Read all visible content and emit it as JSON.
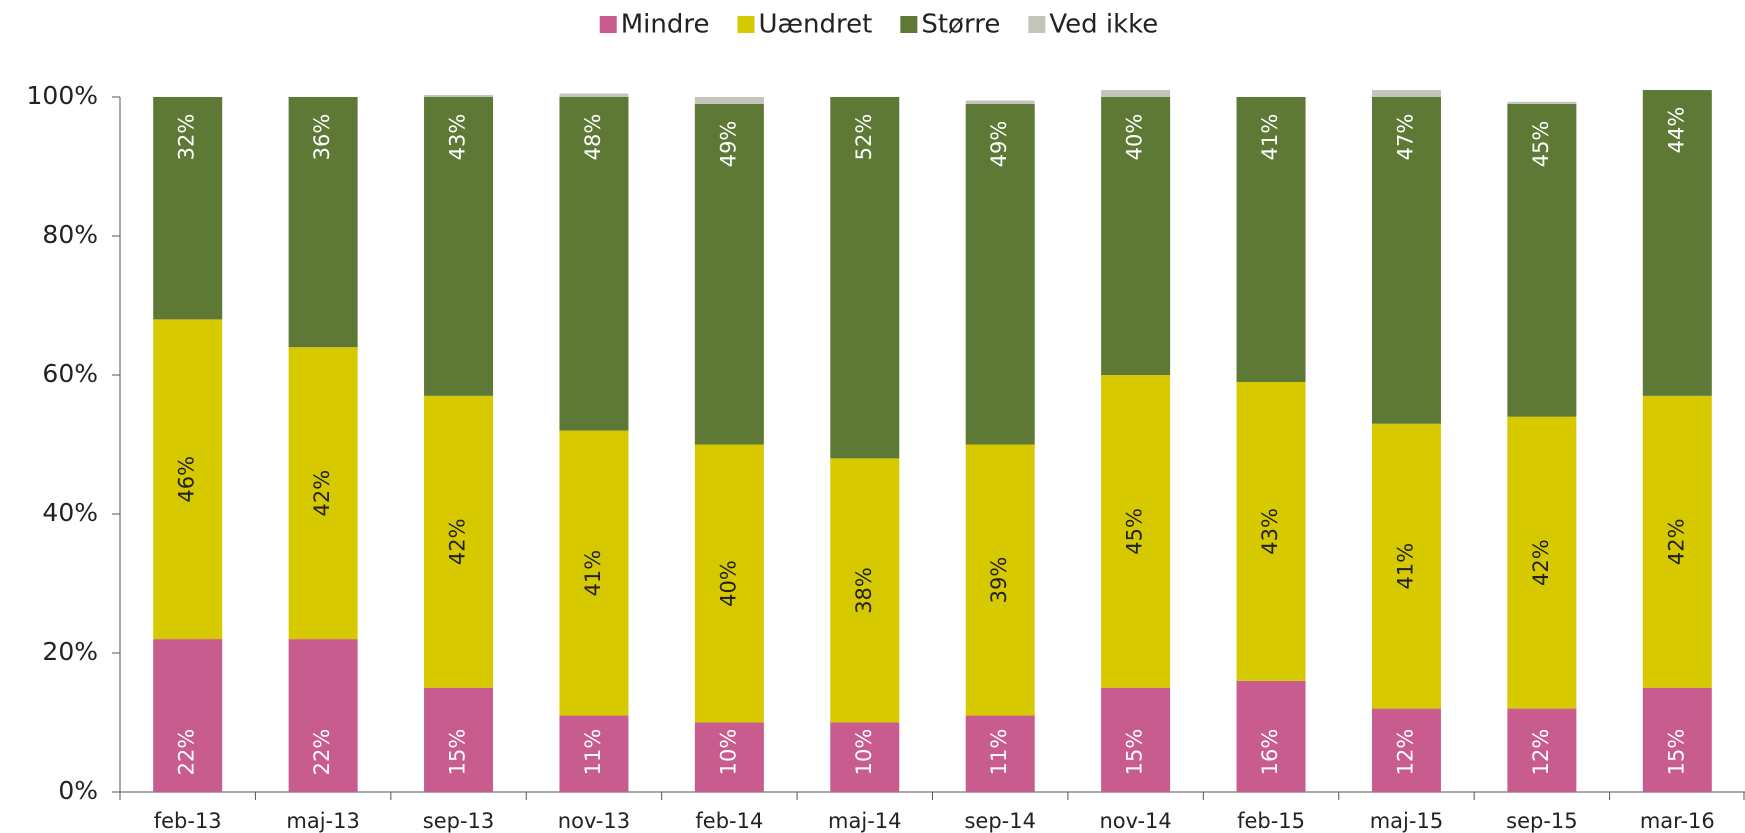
{
  "chart_data": {
    "type": "stacked_bar",
    "categories": [
      "feb-13",
      "maj-13",
      "sep-13",
      "nov-13",
      "feb-14",
      "maj-14",
      "sep-14",
      "nov-14",
      "feb-15",
      "maj-15",
      "sep-15",
      "mar-16"
    ],
    "series": [
      {
        "name": "Mindre",
        "color": "#c95c8f",
        "values": [
          22,
          22,
          15,
          11,
          10,
          10,
          11,
          15,
          16,
          12,
          12,
          15
        ],
        "value_labels": [
          "22%",
          "22%",
          "15%",
          "11%",
          "10%",
          "10%",
          "11%",
          "15%",
          "16%",
          "12%",
          "12%",
          "15%"
        ]
      },
      {
        "name": "Uændret",
        "color": "#d7c900",
        "values": [
          46,
          42,
          42,
          41,
          40,
          38,
          39,
          45,
          43,
          41,
          42,
          42
        ],
        "value_labels": [
          "46%",
          "42%",
          "42%",
          "41%",
          "40%",
          "38%",
          "39%",
          "45%",
          "43%",
          "41%",
          "42%",
          "42%"
        ]
      },
      {
        "name": "Større",
        "color": "#5d7935",
        "values": [
          32,
          36,
          43,
          48,
          49,
          52,
          49,
          40,
          41,
          47,
          45,
          44
        ],
        "value_labels": [
          "32%",
          "36%",
          "43%",
          "48%",
          "49%",
          "52%",
          "49%",
          "40%",
          "41%",
          "47%",
          "45%",
          "44%"
        ]
      },
      {
        "name": "Ved ikke",
        "color": "#c4c4bc",
        "values": [
          0,
          0,
          0.3,
          0.5,
          1,
          0,
          0.5,
          1,
          0,
          1,
          0.3,
          0
        ]
      }
    ],
    "ylim": [
      0,
      100
    ],
    "yticks": [
      {
        "value": 0,
        "label": "0%"
      },
      {
        "value": 20,
        "label": "20%"
      },
      {
        "value": 40,
        "label": "40%"
      },
      {
        "value": 60,
        "label": "60%"
      },
      {
        "value": 80,
        "label": "80%"
      },
      {
        "value": 100,
        "label": "100%"
      }
    ],
    "legend": "top"
  }
}
